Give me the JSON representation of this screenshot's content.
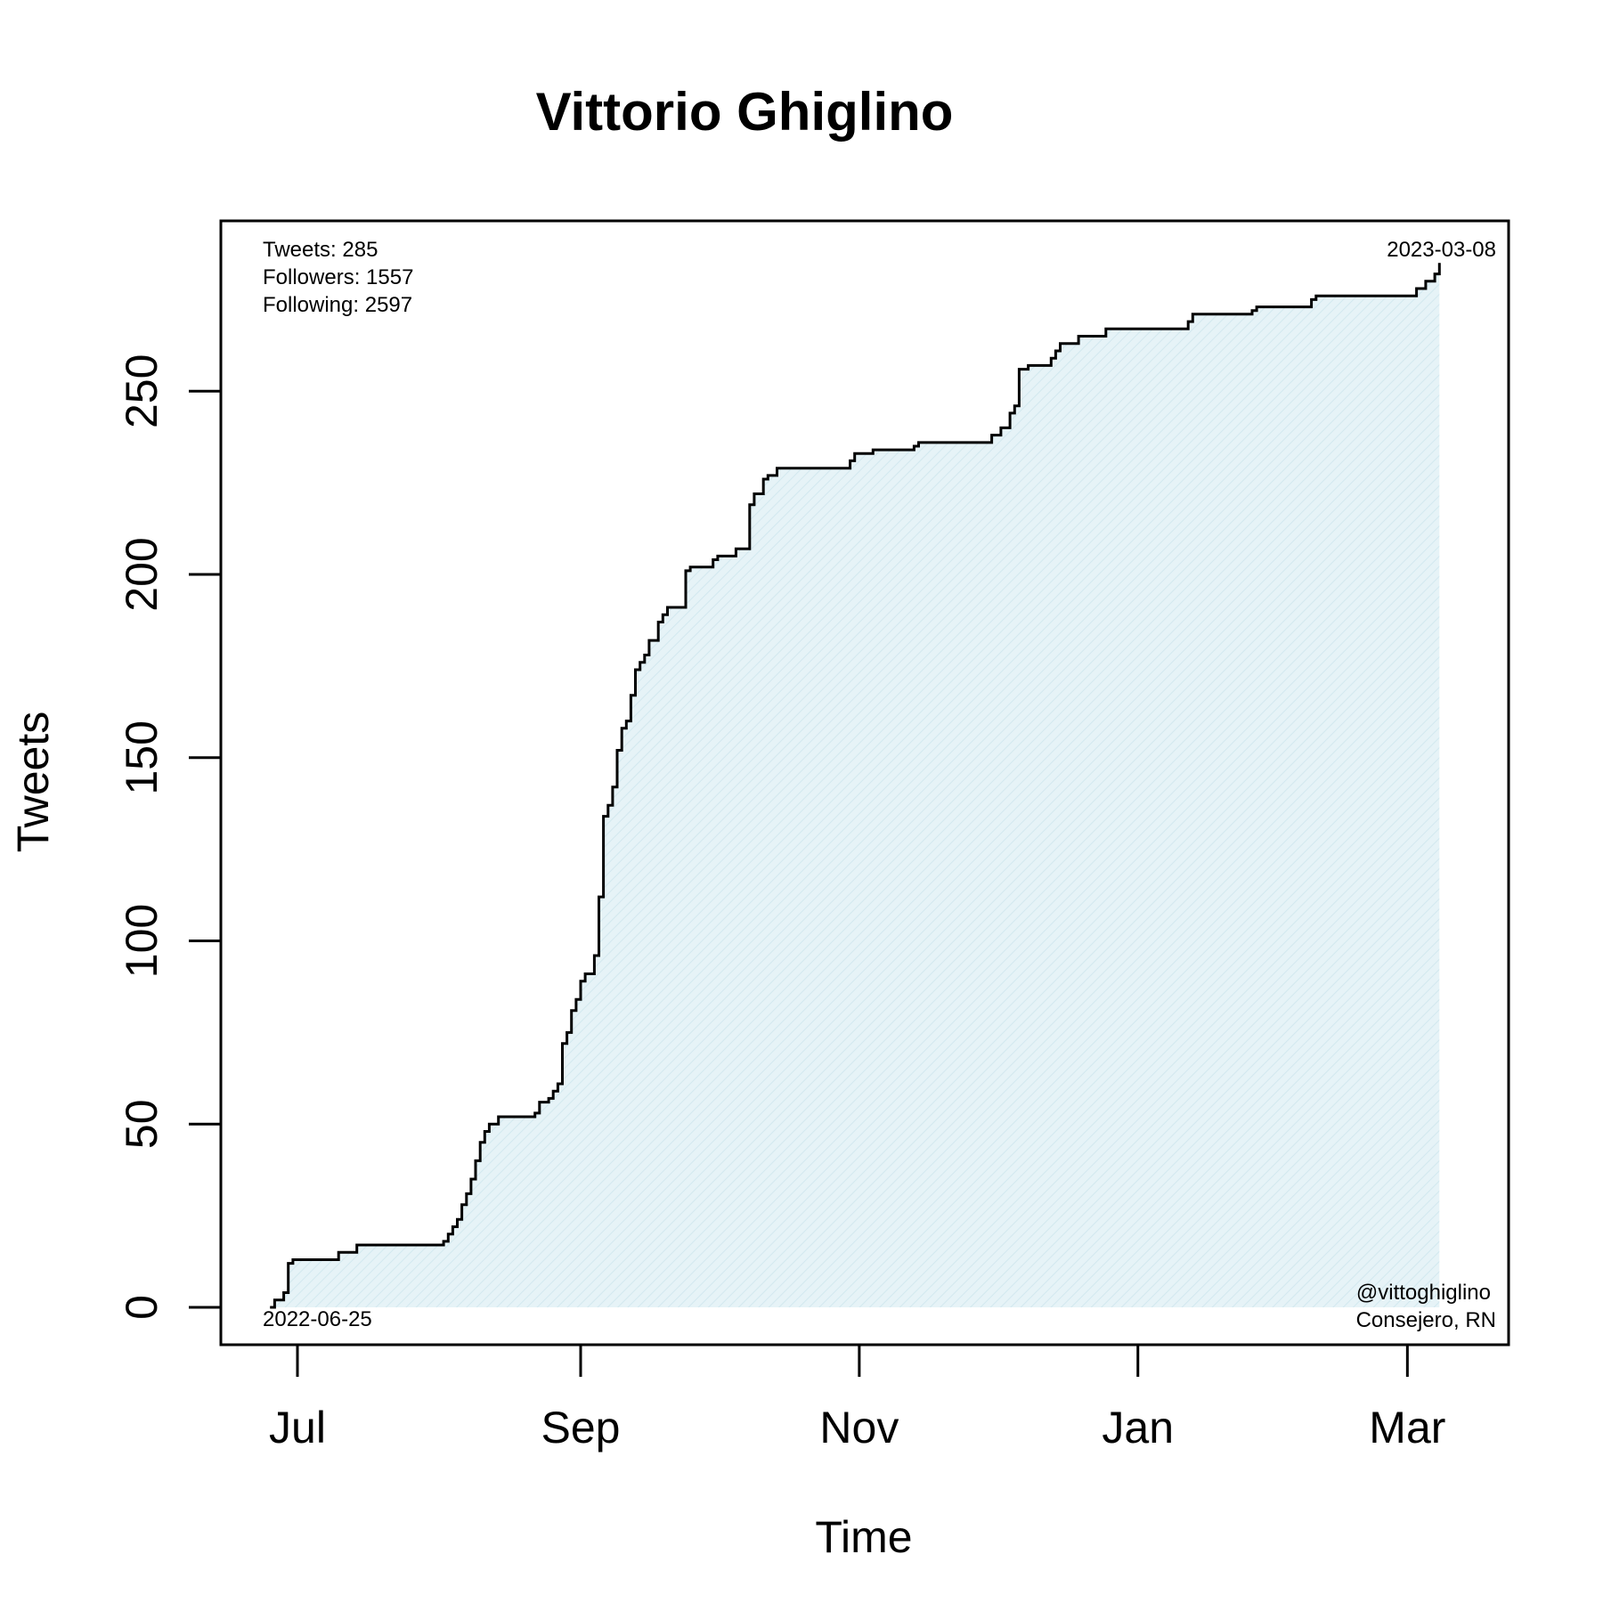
{
  "chart_data": {
    "type": "area",
    "title": "Vittorio Ghiglino",
    "xlabel": "Time",
    "ylabel": "Tweets",
    "ylim": [
      0,
      295
    ],
    "xlim": [
      "2022-06-14",
      "2023-03-11"
    ],
    "x_ticks": [
      {
        "date": "2022-07-01",
        "label": "Jul"
      },
      {
        "date": "2022-09-01",
        "label": "Sep"
      },
      {
        "date": "2022-11-01",
        "label": "Nov"
      },
      {
        "date": "2023-01-01",
        "label": "Jan"
      },
      {
        "date": "2023-03-01",
        "label": "Mar"
      }
    ],
    "y_ticks": [
      0,
      50,
      100,
      150,
      200,
      250
    ],
    "grid": false,
    "fill_color": "#dff0f5",
    "line_color": "#000000",
    "annotations": {
      "stats": [
        "Tweets: 285",
        "Followers: 1557",
        "Following: 2597"
      ],
      "start_date": "2022-06-25",
      "end_date": "2023-03-08",
      "handle": "@vittoghiglino",
      "description": "Consejero, RN"
    },
    "series": [
      {
        "x": [
          "2022-06-25",
          "2022-06-26",
          "2022-06-28",
          "2022-06-29",
          "2022-06-30",
          "2022-07-01",
          "2022-07-10",
          "2022-07-14",
          "2022-07-17",
          "2022-07-18",
          "2022-08-02",
          "2022-08-03",
          "2022-08-04",
          "2022-08-05",
          "2022-08-06",
          "2022-08-07",
          "2022-08-08",
          "2022-08-09",
          "2022-08-10",
          "2022-08-11",
          "2022-08-12",
          "2022-08-14",
          "2022-08-22",
          "2022-08-23",
          "2022-08-25",
          "2022-08-26",
          "2022-08-27",
          "2022-08-28",
          "2022-08-29",
          "2022-08-30",
          "2022-08-31",
          "2022-09-01",
          "2022-09-02",
          "2022-09-04",
          "2022-09-05",
          "2022-09-06",
          "2022-09-07",
          "2022-09-08",
          "2022-09-09",
          "2022-09-10",
          "2022-09-11",
          "2022-09-12",
          "2022-09-13",
          "2022-09-14",
          "2022-09-15",
          "2022-09-16",
          "2022-09-18",
          "2022-09-19",
          "2022-09-20",
          "2022-09-24",
          "2022-09-25",
          "2022-09-30",
          "2022-10-01",
          "2022-10-05",
          "2022-10-08",
          "2022-10-09",
          "2022-10-11",
          "2022-10-12",
          "2022-10-14",
          "2022-10-30",
          "2022-10-31",
          "2022-11-04",
          "2022-11-13",
          "2022-11-14",
          "2022-11-30",
          "2022-12-02",
          "2022-12-04",
          "2022-12-05",
          "2022-12-06",
          "2022-12-08",
          "2022-12-13",
          "2022-12-14",
          "2022-12-15",
          "2022-12-19",
          "2022-12-25",
          "2023-01-12",
          "2023-01-13",
          "2023-01-26",
          "2023-01-27",
          "2023-02-08",
          "2023-02-09",
          "2023-03-03",
          "2023-03-05",
          "2023-03-07",
          "2023-03-08"
        ],
        "values": [
          0,
          2,
          4,
          12,
          13,
          13,
          15,
          17,
          17,
          17,
          18,
          20,
          22,
          24,
          28,
          31,
          35,
          40,
          45,
          48,
          50,
          52,
          53,
          56,
          57,
          59,
          61,
          72,
          75,
          81,
          84,
          89,
          91,
          96,
          112,
          134,
          137,
          142,
          152,
          158,
          160,
          167,
          174,
          176,
          178,
          182,
          187,
          189,
          191,
          201,
          202,
          204,
          205,
          207,
          219,
          222,
          226,
          227,
          229,
          231,
          233,
          234,
          235,
          236,
          238,
          240,
          244,
          246,
          256,
          257,
          259,
          261,
          263,
          265,
          267,
          269,
          271,
          272,
          273,
          275,
          276,
          278,
          280,
          282,
          285
        ]
      }
    ]
  }
}
